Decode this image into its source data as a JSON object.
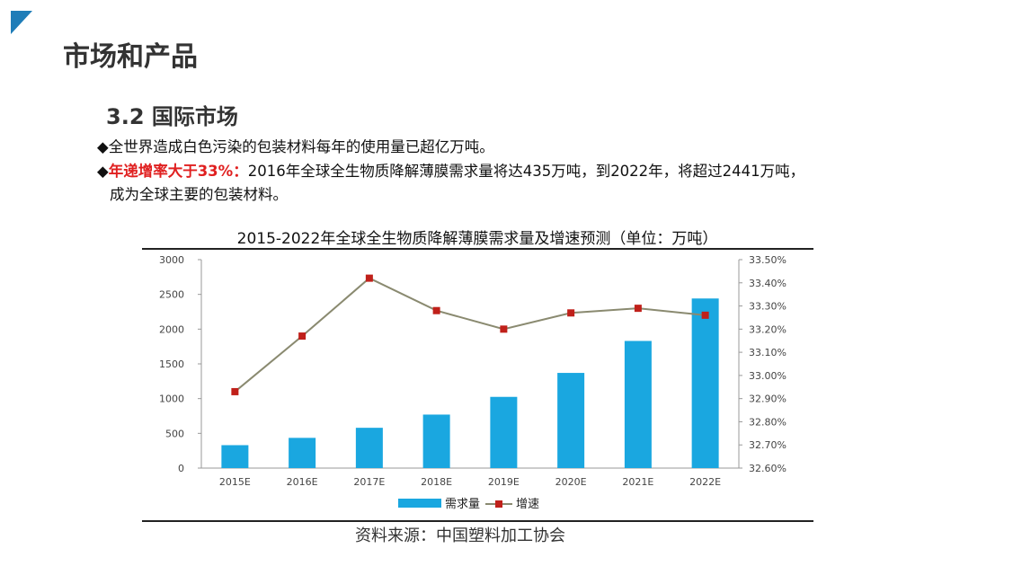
{
  "slide": {
    "title": "市场和产品",
    "subtitle": "3.2  国际市场",
    "bullet1": "◆全世界造成白色污染的包装材料每年的使用量已超亿万吨。",
    "bullet2_marker": "◆",
    "bullet2_highlight": "年递增率大于33%：",
    "bullet2_text": "2016年全球全生物质降解薄膜需求量将达435万吨，到2022年，将超过2441万吨，",
    "bullet2_cont": "成为全球主要的包装材料。",
    "source": "资料来源：中国塑料加工协会",
    "accent_color": "#1f7db8",
    "highlight_color": "#e02020"
  },
  "chart_data": {
    "type": "bar+line",
    "title": "2015-2022年全球全生物质降解薄膜需求量及增速预测（单位：万吨）",
    "categories": [
      "2015E",
      "2016E",
      "2017E",
      "2018E",
      "2019E",
      "2020E",
      "2021E",
      "2022E"
    ],
    "series": [
      {
        "name": "需求量",
        "type": "bar",
        "axis": "left",
        "color": "#1aa7e0",
        "values": [
          330,
          435,
          580,
          770,
          1025,
          1370,
          1830,
          2441
        ]
      },
      {
        "name": "增速",
        "type": "line",
        "axis": "right",
        "color": "#c0201a",
        "line_color": "#8a8a70",
        "values": [
          32.93,
          33.17,
          33.42,
          33.28,
          33.2,
          33.27,
          33.29,
          33.26
        ]
      }
    ],
    "y_left": {
      "min": 0,
      "max": 3000,
      "ticks": [
        "0",
        "500",
        "1000",
        "1500",
        "2000",
        "2500",
        "3000"
      ]
    },
    "y_right": {
      "min": 32.6,
      "max": 33.5,
      "ticks": [
        "32.60%",
        "32.70%",
        "32.80%",
        "32.90%",
        "33.00%",
        "33.10%",
        "33.20%",
        "33.30%",
        "33.40%",
        "33.50%"
      ]
    },
    "legend": "bottom",
    "grid": false
  }
}
